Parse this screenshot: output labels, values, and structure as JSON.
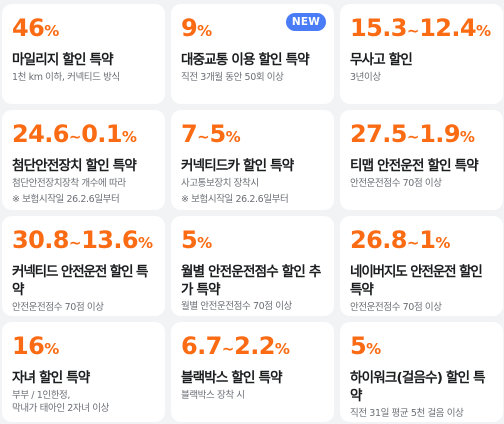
{
  "cards": [
    {
      "rate_main": "46",
      "rate_unit": "%",
      "title": "마일리지 할인 특약",
      "desc": "1천 km 이하, 커넥티드 방식"
    },
    {
      "rate_main": "9",
      "rate_unit": "%",
      "title": "대중교통 이용 할인 특약",
      "desc": "직전 3개월 동안 50회 이상",
      "badge": "NEW"
    },
    {
      "rate_main": "15.3",
      "rate_sep": "~",
      "rate_second": "12.4",
      "rate_unit": "%",
      "title": "무사고 할인",
      "desc": "3년이상"
    },
    {
      "rate_main": "24.6",
      "rate_sep": "~",
      "rate_second": "0.1",
      "rate_unit": "%",
      "title": "첨단안전장치 할인 특약",
      "desc": "첨단안전장치장착 개수에 따라",
      "note": "※ 보험시작일 26.2.6일부터"
    },
    {
      "rate_main": "7",
      "rate_sep": "~",
      "rate_second": "5",
      "rate_unit": "%",
      "title": "커넥티드카 할인 특약",
      "desc": "사고통보장치 장착시",
      "note": "※ 보험시작일 26.2.6일부터"
    },
    {
      "rate_main": "27.5",
      "rate_sep": "~",
      "rate_second": "1.9",
      "rate_unit": "%",
      "title": "티맵 안전운전 할인 특약",
      "desc": "안전운전점수 70점 이상"
    },
    {
      "rate_main": "30.8",
      "rate_sep": "~",
      "rate_second": "13.6",
      "rate_unit": "%",
      "title": "커넥티드 안전운전 할인 특약",
      "desc": "안전운전점수 70점 이상"
    },
    {
      "rate_main": "5",
      "rate_unit": "%",
      "title": "월별 안전운전점수 할인 추가 특약",
      "desc": "월별 안전운전점수 70점 이상"
    },
    {
      "rate_main": "26.8",
      "rate_sep": "~",
      "rate_second": "1",
      "rate_unit": "%",
      "title": "네이버지도 안전운전 할인 특약",
      "desc": "안전운전점수 70점 이상"
    },
    {
      "rate_main": "16",
      "rate_unit": "%",
      "title": "자녀 할인 특약",
      "desc": "부부 / 1인한정,",
      "desc2": "막내가 태아인 2자녀 이상"
    },
    {
      "rate_main": "6.7",
      "rate_sep": "~",
      "rate_second": "2.2",
      "rate_unit": "%",
      "title": "블랙박스 할인 특약",
      "desc": "블랙박스 장착 시"
    },
    {
      "rate_main": "5",
      "rate_unit": "%",
      "title": "하이워크(걸음수) 할인 특약",
      "desc": "직전 31일 평균 5천 걸음 이상"
    }
  ],
  "colors": {
    "accent": "#fa6b14",
    "badge": "#4a7cf7",
    "background": "#f2f3f5"
  }
}
